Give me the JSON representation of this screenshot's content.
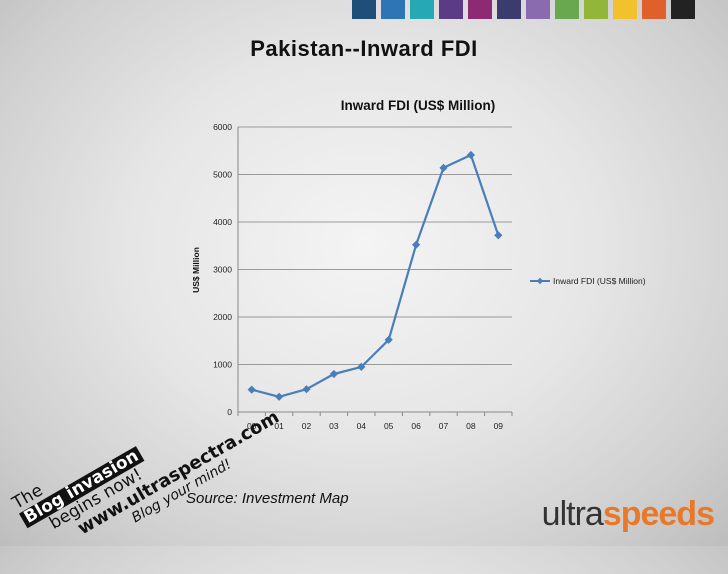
{
  "header": {
    "swatch_colors": [
      "#1f4e79",
      "#2e75b6",
      "#27a9b5",
      "#5b3a86",
      "#8e2a73",
      "#3b3b6d",
      "#8a6bb0",
      "#6aa84f",
      "#92b63a",
      "#f2c12e",
      "#e0602b",
      "#222222"
    ]
  },
  "slide": {
    "title": "Pakistan--Inward FDI",
    "source": "Source: Investment Map"
  },
  "promo": {
    "line1": "The",
    "line2": "Blog invasion",
    "line3": "begins now!",
    "line4": "www.ultraspectra.com",
    "line5": "Blog your mind!"
  },
  "brand": {
    "part1": "ultra",
    "part2": "speeds"
  },
  "chart_data": {
    "type": "line",
    "title": "Inward FDI (US$ Million)",
    "xlabel": "",
    "ylabel": "US$ Million",
    "categories": [
      "00",
      "01",
      "02",
      "03",
      "04",
      "05",
      "06",
      "07",
      "08",
      "09"
    ],
    "series": [
      {
        "name": "Inward FDI (US$ Million)",
        "values": [
          470,
          320,
          480,
          800,
          950,
          1520,
          3520,
          5140,
          5410,
          3720
        ],
        "color": "#4a7ebb"
      }
    ],
    "ylim": [
      0,
      6000
    ],
    "yticks": [
      0,
      1000,
      2000,
      3000,
      4000,
      5000,
      6000
    ],
    "grid": true,
    "legend": "right"
  }
}
